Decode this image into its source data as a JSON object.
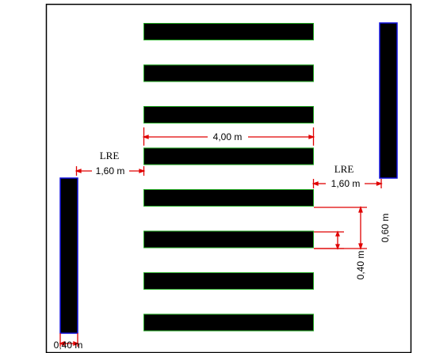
{
  "colors": {
    "bar_fill": "#000000",
    "stripe_outline": "#22aa22",
    "side_bar_outline": "#1010dd",
    "dimension": "#e00000",
    "frame": "#000000"
  },
  "stripes": {
    "count": 8
  },
  "labels": {
    "stripe_length": "4,00 m",
    "lre_left": "LRE",
    "lre_left_distance": "1,60 m",
    "lre_right": "LRE",
    "lre_right_distance": "1,60 m",
    "stripe_pitch": "0,60 m",
    "stripe_gap": "0,40 m",
    "side_bar_width": "0,40 m"
  }
}
